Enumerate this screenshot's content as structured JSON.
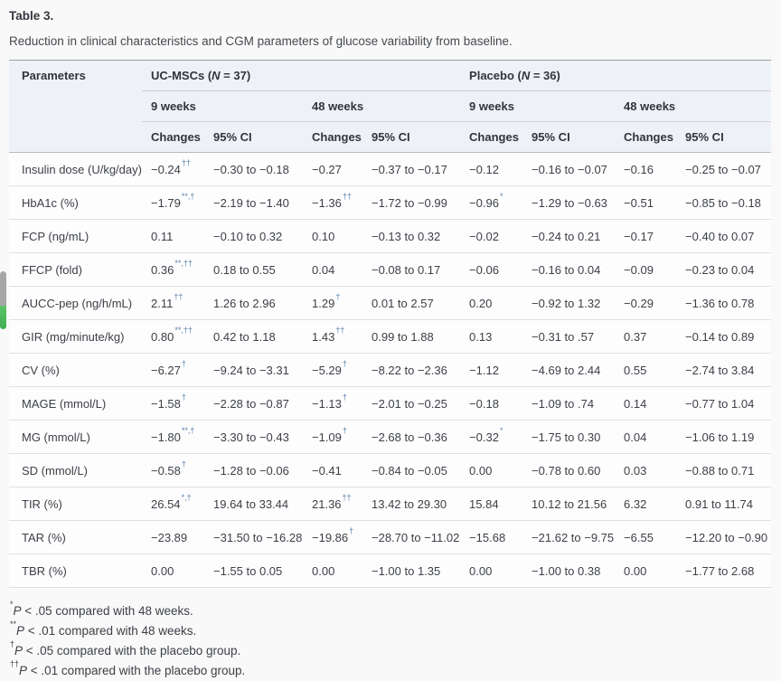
{
  "page": {
    "background": "#f9f9f9",
    "scroll_indicator": {
      "track_color": "#a6a6a6",
      "thumb_color_top": "#5cc468",
      "thumb_color_bottom": "#3fae52"
    }
  },
  "table": {
    "title": "Table 3.",
    "caption": "Reduction in clinical characteristics and CGM parameters of glucose variability from baseline.",
    "accent_superscript_color": "#5b84ad",
    "header": {
      "parameters_label": "Parameters",
      "groups": [
        {
          "pre": "UC-MSCs (",
          "n": "N",
          "post": " = 37)"
        },
        {
          "pre": "Placebo (",
          "n": "N",
          "post": " = 36)"
        }
      ],
      "weeks": [
        "9 weeks",
        "48 weeks",
        "9 weeks",
        "48 weeks"
      ],
      "sub": [
        "Changes",
        "95% CI",
        "Changes",
        "95% CI",
        "Changes",
        "95% CI",
        "Changes",
        "95% CI"
      ]
    },
    "rows": [
      {
        "param": "Insulin dose (U/kg/day)",
        "cells": [
          {
            "v": "−0.24",
            "sup": "††"
          },
          {
            "v": "−0.30 to −0.18"
          },
          {
            "v": "−0.27"
          },
          {
            "v": "−0.37 to −0.17"
          },
          {
            "v": "−0.12"
          },
          {
            "v": "−0.16 to −0.07"
          },
          {
            "v": "−0.16"
          },
          {
            "v": "−0.25 to −0.07"
          }
        ]
      },
      {
        "param": "HbA1c (%)",
        "cells": [
          {
            "v": "−1.79",
            "sup": "**,†"
          },
          {
            "v": "−2.19 to −1.40"
          },
          {
            "v": "−1.36",
            "sup": "††"
          },
          {
            "v": "−1.72 to −0.99"
          },
          {
            "v": "−0.96",
            "sup": "*"
          },
          {
            "v": "−1.29 to −0.63"
          },
          {
            "v": "−0.51"
          },
          {
            "v": "−0.85 to −0.18"
          }
        ]
      },
      {
        "param": "FCP (ng/mL)",
        "cells": [
          {
            "v": "0.11"
          },
          {
            "v": "−0.10 to 0.32"
          },
          {
            "v": "0.10"
          },
          {
            "v": "−0.13 to 0.32"
          },
          {
            "v": "−0.02"
          },
          {
            "v": "−0.24 to 0.21"
          },
          {
            "v": "−0.17"
          },
          {
            "v": "−0.40 to 0.07"
          }
        ]
      },
      {
        "param": "FFCP (fold)",
        "cells": [
          {
            "v": "0.36",
            "sup": "**,††"
          },
          {
            "v": "0.18 to 0.55"
          },
          {
            "v": "0.04"
          },
          {
            "v": "−0.08 to 0.17"
          },
          {
            "v": "−0.06"
          },
          {
            "v": "−0.16 to 0.04"
          },
          {
            "v": "−0.09"
          },
          {
            "v": "−0.23 to 0.04"
          }
        ]
      },
      {
        "param": "AUCC-pep (ng/h/mL)",
        "cells": [
          {
            "v": "2.11",
            "sup": "††"
          },
          {
            "v": "1.26 to 2.96"
          },
          {
            "v": "1.29",
            "sup": "†"
          },
          {
            "v": "0.01 to 2.57"
          },
          {
            "v": "0.20"
          },
          {
            "v": "−0.92 to 1.32"
          },
          {
            "v": "−0.29"
          },
          {
            "v": "−1.36 to 0.78"
          }
        ]
      },
      {
        "param": "GIR (mg/minute/kg)",
        "cells": [
          {
            "v": "0.80",
            "sup": "**,††"
          },
          {
            "v": "0.42 to 1.18"
          },
          {
            "v": "1.43",
            "sup": "††"
          },
          {
            "v": "0.99 to 1.88"
          },
          {
            "v": "0.13"
          },
          {
            "v": "−0.31 to .57"
          },
          {
            "v": "0.37"
          },
          {
            "v": "−0.14 to 0.89"
          }
        ]
      },
      {
        "param": "CV (%)",
        "cells": [
          {
            "v": "−6.27",
            "sup": "†"
          },
          {
            "v": "−9.24 to −3.31"
          },
          {
            "v": "−5.29",
            "sup": "†"
          },
          {
            "v": "−8.22 to −2.36"
          },
          {
            "v": "−1.12"
          },
          {
            "v": "−4.69 to 2.44"
          },
          {
            "v": "0.55"
          },
          {
            "v": "−2.74 to 3.84"
          }
        ]
      },
      {
        "param": "MAGE (mmol/L)",
        "cells": [
          {
            "v": "−1.58",
            "sup": "†"
          },
          {
            "v": "−2.28 to −0.87"
          },
          {
            "v": "−1.13",
            "sup": "†"
          },
          {
            "v": "−2.01 to −0.25"
          },
          {
            "v": "−0.18"
          },
          {
            "v": "−1.09 to .74"
          },
          {
            "v": "0.14"
          },
          {
            "v": "−0.77 to 1.04"
          }
        ]
      },
      {
        "param": "MG (mmol/L)",
        "cells": [
          {
            "v": "−1.80",
            "sup": "**,†"
          },
          {
            "v": "−3.30 to −0.43"
          },
          {
            "v": "−1.09",
            "sup": "†"
          },
          {
            "v": "−2.68 to −0.36"
          },
          {
            "v": "−0.32",
            "sup": "*"
          },
          {
            "v": "−1.75 to 0.30"
          },
          {
            "v": "0.04"
          },
          {
            "v": "−1.06 to 1.19"
          }
        ]
      },
      {
        "param": "SD (mmol/L)",
        "cells": [
          {
            "v": "−0.58",
            "sup": "†"
          },
          {
            "v": "−1.28 to −0.06"
          },
          {
            "v": "−0.41"
          },
          {
            "v": "−0.84 to −0.05"
          },
          {
            "v": "0.00"
          },
          {
            "v": "−0.78 to 0.60"
          },
          {
            "v": "0.03"
          },
          {
            "v": "−0.88 to 0.71"
          }
        ]
      },
      {
        "param": "TIR (%)",
        "cells": [
          {
            "v": "26.54",
            "sup": "*,†"
          },
          {
            "v": "19.64 to 33.44"
          },
          {
            "v": "21.36",
            "sup": "††"
          },
          {
            "v": "13.42 to 29.30"
          },
          {
            "v": "15.84"
          },
          {
            "v": "10.12 to 21.56"
          },
          {
            "v": "6.32"
          },
          {
            "v": "0.91 to 11.74"
          }
        ]
      },
      {
        "param": "TAR (%)",
        "cells": [
          {
            "v": "−23.89"
          },
          {
            "v": "−31.50 to −16.28"
          },
          {
            "v": "−19.86",
            "sup": "†"
          },
          {
            "v": "−28.70 to −11.02"
          },
          {
            "v": "−15.68"
          },
          {
            "v": "−21.62 to −9.75"
          },
          {
            "v": "−6.55"
          },
          {
            "v": "−12.20 to −0.90"
          }
        ]
      },
      {
        "param": "TBR (%)",
        "cells": [
          {
            "v": "0.00"
          },
          {
            "v": "−1.55 to 0.05"
          },
          {
            "v": "0.00"
          },
          {
            "v": "−1.00 to 1.35"
          },
          {
            "v": "0.00"
          },
          {
            "v": "−1.00 to 0.38"
          },
          {
            "v": "0.00"
          },
          {
            "v": "−1.77 to 2.68"
          }
        ]
      }
    ],
    "footnotes": [
      {
        "marker": "*",
        "p": "P",
        "rest": " < .05 compared with 48 weeks."
      },
      {
        "marker": "**",
        "p": "P",
        "rest": " < .01 compared with 48 weeks."
      },
      {
        "marker": "†",
        "p": "P",
        "rest": " < .05 compared with the placebo group."
      },
      {
        "marker": "††",
        "p": "P",
        "rest": " < .01 compared with the placebo group."
      }
    ]
  }
}
